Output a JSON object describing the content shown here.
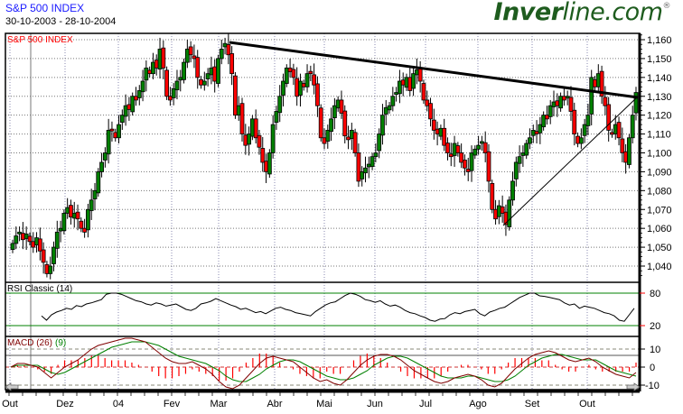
{
  "header": {
    "title": "S&P 500 INDEX",
    "date_range": "30-10-2003 - 28-10-2004",
    "brand_bold": "Inver",
    "brand_light": "line.com",
    "brand_mark": "®"
  },
  "panes": {
    "price": {
      "label": "S&P 500 INDEX",
      "label_color": "#ff0000"
    },
    "rsi": {
      "label": "RSI Classic (14)",
      "levels": [
        "80",
        "20"
      ]
    },
    "macd": {
      "label_main": "MACD (26)",
      "label_signal": "(9)",
      "levels": [
        "10",
        "0",
        "-10"
      ]
    }
  },
  "chart_data": [
    {
      "type": "candlestick",
      "title": "S&P 500 INDEX",
      "subtitle": "30-10-2003 - 28-10-2004",
      "xlabel": "",
      "ylabel": "",
      "ylim": [
        1030,
        1165
      ],
      "y_ticks": [
        "1,040",
        "1,050",
        "1,060",
        "1,070",
        "1,080",
        "1,090",
        "1,100",
        "1,110",
        "1,120",
        "1,130",
        "1,140",
        "1,150",
        "1,160"
      ],
      "x_ticks": [
        "Out",
        "Dez",
        "04",
        "Fev",
        "Mar",
        "Abr",
        "Mai",
        "Jun",
        "Jul",
        "Ago",
        "Set",
        "Out"
      ],
      "grid": true,
      "up_color": "#008000",
      "down_color": "#ff0000",
      "closes": [
        1052,
        1056,
        1058,
        1054,
        1057,
        1053,
        1050,
        1055,
        1048,
        1042,
        1036,
        1040,
        1050,
        1058,
        1060,
        1068,
        1071,
        1066,
        1068,
        1065,
        1060,
        1058,
        1070,
        1075,
        1080,
        1090,
        1095,
        1100,
        1112,
        1112,
        1108,
        1115,
        1120,
        1125,
        1123,
        1130,
        1128,
        1133,
        1138,
        1145,
        1142,
        1148,
        1145,
        1155,
        1145,
        1130,
        1128,
        1134,
        1138,
        1140,
        1148,
        1155,
        1152,
        1150,
        1140,
        1136,
        1138,
        1142,
        1145,
        1138,
        1150,
        1155,
        1158,
        1152,
        1142,
        1120,
        1125,
        1110,
        1104,
        1110,
        1118,
        1108,
        1103,
        1095,
        1090,
        1100,
        1115,
        1122,
        1130,
        1138,
        1145,
        1143,
        1140,
        1130,
        1138,
        1135,
        1142,
        1142,
        1136,
        1125,
        1108,
        1105,
        1112,
        1118,
        1125,
        1128,
        1121,
        1109,
        1107,
        1112,
        1100,
        1085,
        1090,
        1092,
        1094,
        1098,
        1100,
        1110,
        1120,
        1124,
        1125,
        1130,
        1132,
        1138,
        1136,
        1140,
        1133,
        1142,
        1144,
        1138,
        1128,
        1125,
        1118,
        1112,
        1110,
        1113,
        1104,
        1100,
        1098,
        1105,
        1100,
        1095,
        1092,
        1090,
        1100,
        1102,
        1104,
        1106,
        1100,
        1085,
        1070,
        1065,
        1072,
        1068,
        1062,
        1075,
        1085,
        1095,
        1098,
        1100,
        1105,
        1108,
        1112,
        1110,
        1115,
        1120,
        1118,
        1125,
        1127,
        1125,
        1130,
        1128,
        1130,
        1122,
        1110,
        1105,
        1108,
        1115,
        1120,
        1140,
        1135,
        1142,
        1130,
        1125,
        1112,
        1110,
        1115,
        1108,
        1100,
        1095,
        1108,
        1120,
        1132
      ],
      "trendlines": [
        {
          "style": "thick",
          "from": {
            "x": "Mar",
            "y": 1160
          },
          "to": {
            "x": "end",
            "y": 1130
          }
        },
        {
          "style": "thin",
          "from": {
            "x": "Ago",
            "y": 1063
          },
          "to": {
            "x": "end",
            "y": 1130
          }
        }
      ]
    },
    {
      "type": "line",
      "title": "RSI Classic (14)",
      "ylim": [
        0,
        100
      ],
      "reference_lines": [
        80,
        20
      ],
      "values": [
        38,
        30,
        40,
        45,
        48,
        52,
        50,
        57,
        55,
        60,
        62,
        65,
        68,
        78,
        80,
        80,
        78,
        74,
        70,
        66,
        64,
        60,
        58,
        62,
        60,
        56,
        58,
        60,
        55,
        50,
        48,
        52,
        60,
        62,
        65,
        70,
        66,
        62,
        58,
        55,
        50,
        52,
        48,
        44,
        46,
        42,
        47,
        52,
        54,
        50,
        48,
        44,
        42,
        40,
        38,
        46,
        52,
        58,
        62,
        64,
        70,
        76,
        80,
        78,
        74,
        68,
        66,
        63,
        66,
        60,
        56,
        58,
        54,
        48,
        44,
        42,
        38,
        35,
        30,
        28,
        32,
        33,
        40,
        44,
        42,
        46,
        48,
        50,
        42,
        38,
        45,
        48,
        52,
        54,
        60,
        66,
        72,
        76,
        80,
        80,
        75,
        74,
        72,
        70,
        68,
        62,
        58,
        60,
        52,
        56,
        54,
        52,
        48,
        44,
        42,
        38,
        30,
        28,
        40,
        52
      ]
    },
    {
      "type": "line",
      "title": "MACD (26) (9)",
      "ylim": [
        -12,
        17
      ],
      "y_ticks": [
        "10",
        "0",
        "-10"
      ],
      "series": [
        {
          "name": "MACD (26)",
          "color": "#800000",
          "values": [
            0,
            2,
            2,
            1,
            0,
            -3,
            -6,
            -3,
            0,
            2,
            4,
            7,
            10,
            12,
            13,
            14,
            15,
            16,
            16,
            15,
            14,
            11,
            8,
            5,
            3,
            2,
            2,
            3,
            1,
            -1,
            -4,
            -8,
            -11,
            -12,
            -10,
            -6,
            -2,
            2,
            5,
            6,
            5,
            4,
            3,
            0,
            -3,
            -6,
            -8,
            -7,
            -9,
            -10,
            -7,
            -3,
            1,
            4,
            6,
            7,
            7,
            6,
            4,
            1,
            -2,
            -4,
            -6,
            -8,
            -9,
            -8,
            -6,
            -5,
            -4,
            -5,
            -7,
            -10,
            -11,
            -9,
            -5,
            -1,
            2,
            5,
            7,
            8,
            9,
            8,
            6,
            4,
            3,
            4,
            5,
            3,
            0,
            -2,
            -4,
            -5,
            -6,
            -3
          ]
        },
        {
          "name": "Signal (9)",
          "color": "#008000",
          "values": [
            0,
            1,
            1,
            1,
            1,
            -1,
            -3,
            -4,
            -3,
            -1,
            1,
            3,
            5,
            7,
            9,
            11,
            12,
            13,
            14,
            14,
            14,
            13,
            12,
            10,
            8,
            6,
            5,
            4,
            3,
            2,
            0,
            -2,
            -5,
            -7,
            -8,
            -8,
            -6,
            -4,
            -1,
            1,
            3,
            4,
            4,
            3,
            1,
            -1,
            -3,
            -5,
            -6,
            -7,
            -7,
            -6,
            -4,
            -2,
            1,
            3,
            5,
            6,
            6,
            5,
            3,
            1,
            -1,
            -3,
            -5,
            -6,
            -6,
            -6,
            -5,
            -5,
            -6,
            -7,
            -8,
            -8,
            -7,
            -5,
            -2,
            1,
            3,
            5,
            6,
            7,
            7,
            6,
            5,
            4,
            4,
            4,
            2,
            0,
            -2,
            -3,
            -4,
            -5
          ]
        },
        {
          "name": "Histogram",
          "color": "#ff0000",
          "type": "bar"
        }
      ]
    }
  ]
}
